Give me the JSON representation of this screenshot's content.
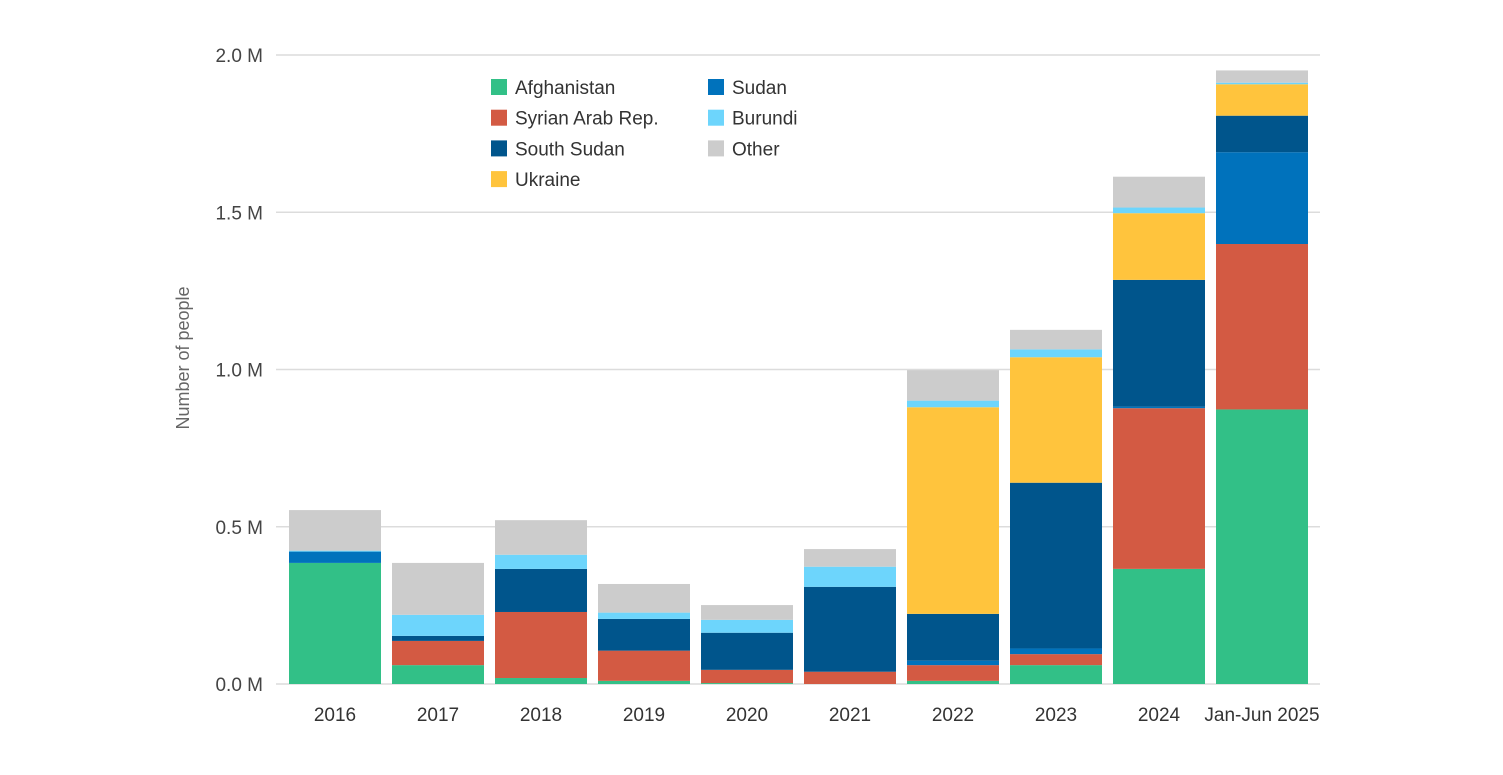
{
  "chart_data": {
    "type": "bar",
    "stacked": true,
    "title": "",
    "xlabel": "",
    "ylabel": "Number of people",
    "ylim": [
      0,
      2000000
    ],
    "yticks": [
      0,
      500000,
      1000000,
      1500000,
      2000000
    ],
    "ytick_labels": [
      "0.0 M",
      "0.5 M",
      "1.0 M",
      "1.5 M",
      "2.0 M"
    ],
    "grid": true,
    "legend_placement": "top-center",
    "categories": [
      "2016",
      "2017",
      "2018",
      "2019",
      "2020",
      "2021",
      "2022",
      "2023",
      "2024",
      "Jan-Jun 2025"
    ],
    "series": [
      {
        "name": "Afghanistan",
        "color": "#32c087",
        "values": [
          385000,
          60000,
          19000,
          10000,
          3000,
          0,
          10000,
          60000,
          366000,
          873000
        ]
      },
      {
        "name": "Syrian Arab Rep.",
        "color": "#d35a43",
        "values": [
          0,
          77000,
          210000,
          96000,
          42000,
          39000,
          50000,
          35000,
          511000,
          526000
        ]
      },
      {
        "name": "Sudan",
        "color": "#0072bc",
        "values": [
          36000,
          0,
          0,
          0,
          0,
          0,
          14000,
          18000,
          5000,
          292000
        ]
      },
      {
        "name": "South Sudan",
        "color": "#00558c",
        "values": [
          0,
          16000,
          137000,
          101000,
          118000,
          270000,
          149000,
          527000,
          403000,
          116000
        ]
      },
      {
        "name": "Ukraine",
        "color": "#ffc43d",
        "values": [
          0,
          0,
          0,
          0,
          0,
          0,
          657000,
          399000,
          212000,
          100000
        ]
      },
      {
        "name": "Burundi",
        "color": "#6dd5fc",
        "values": [
          3000,
          67000,
          45000,
          20000,
          41000,
          64000,
          21000,
          25000,
          18000,
          5000
        ]
      },
      {
        "name": "Other",
        "color": "#cccccc",
        "values": [
          129000,
          165000,
          110000,
          91000,
          47000,
          56000,
          97000,
          62000,
          98000,
          39000
        ]
      }
    ],
    "legend_order": [
      "Afghanistan",
      "Sudan",
      "Syrian Arab Rep.",
      "Burundi",
      "South Sudan",
      "Other",
      "Ukraine"
    ]
  }
}
